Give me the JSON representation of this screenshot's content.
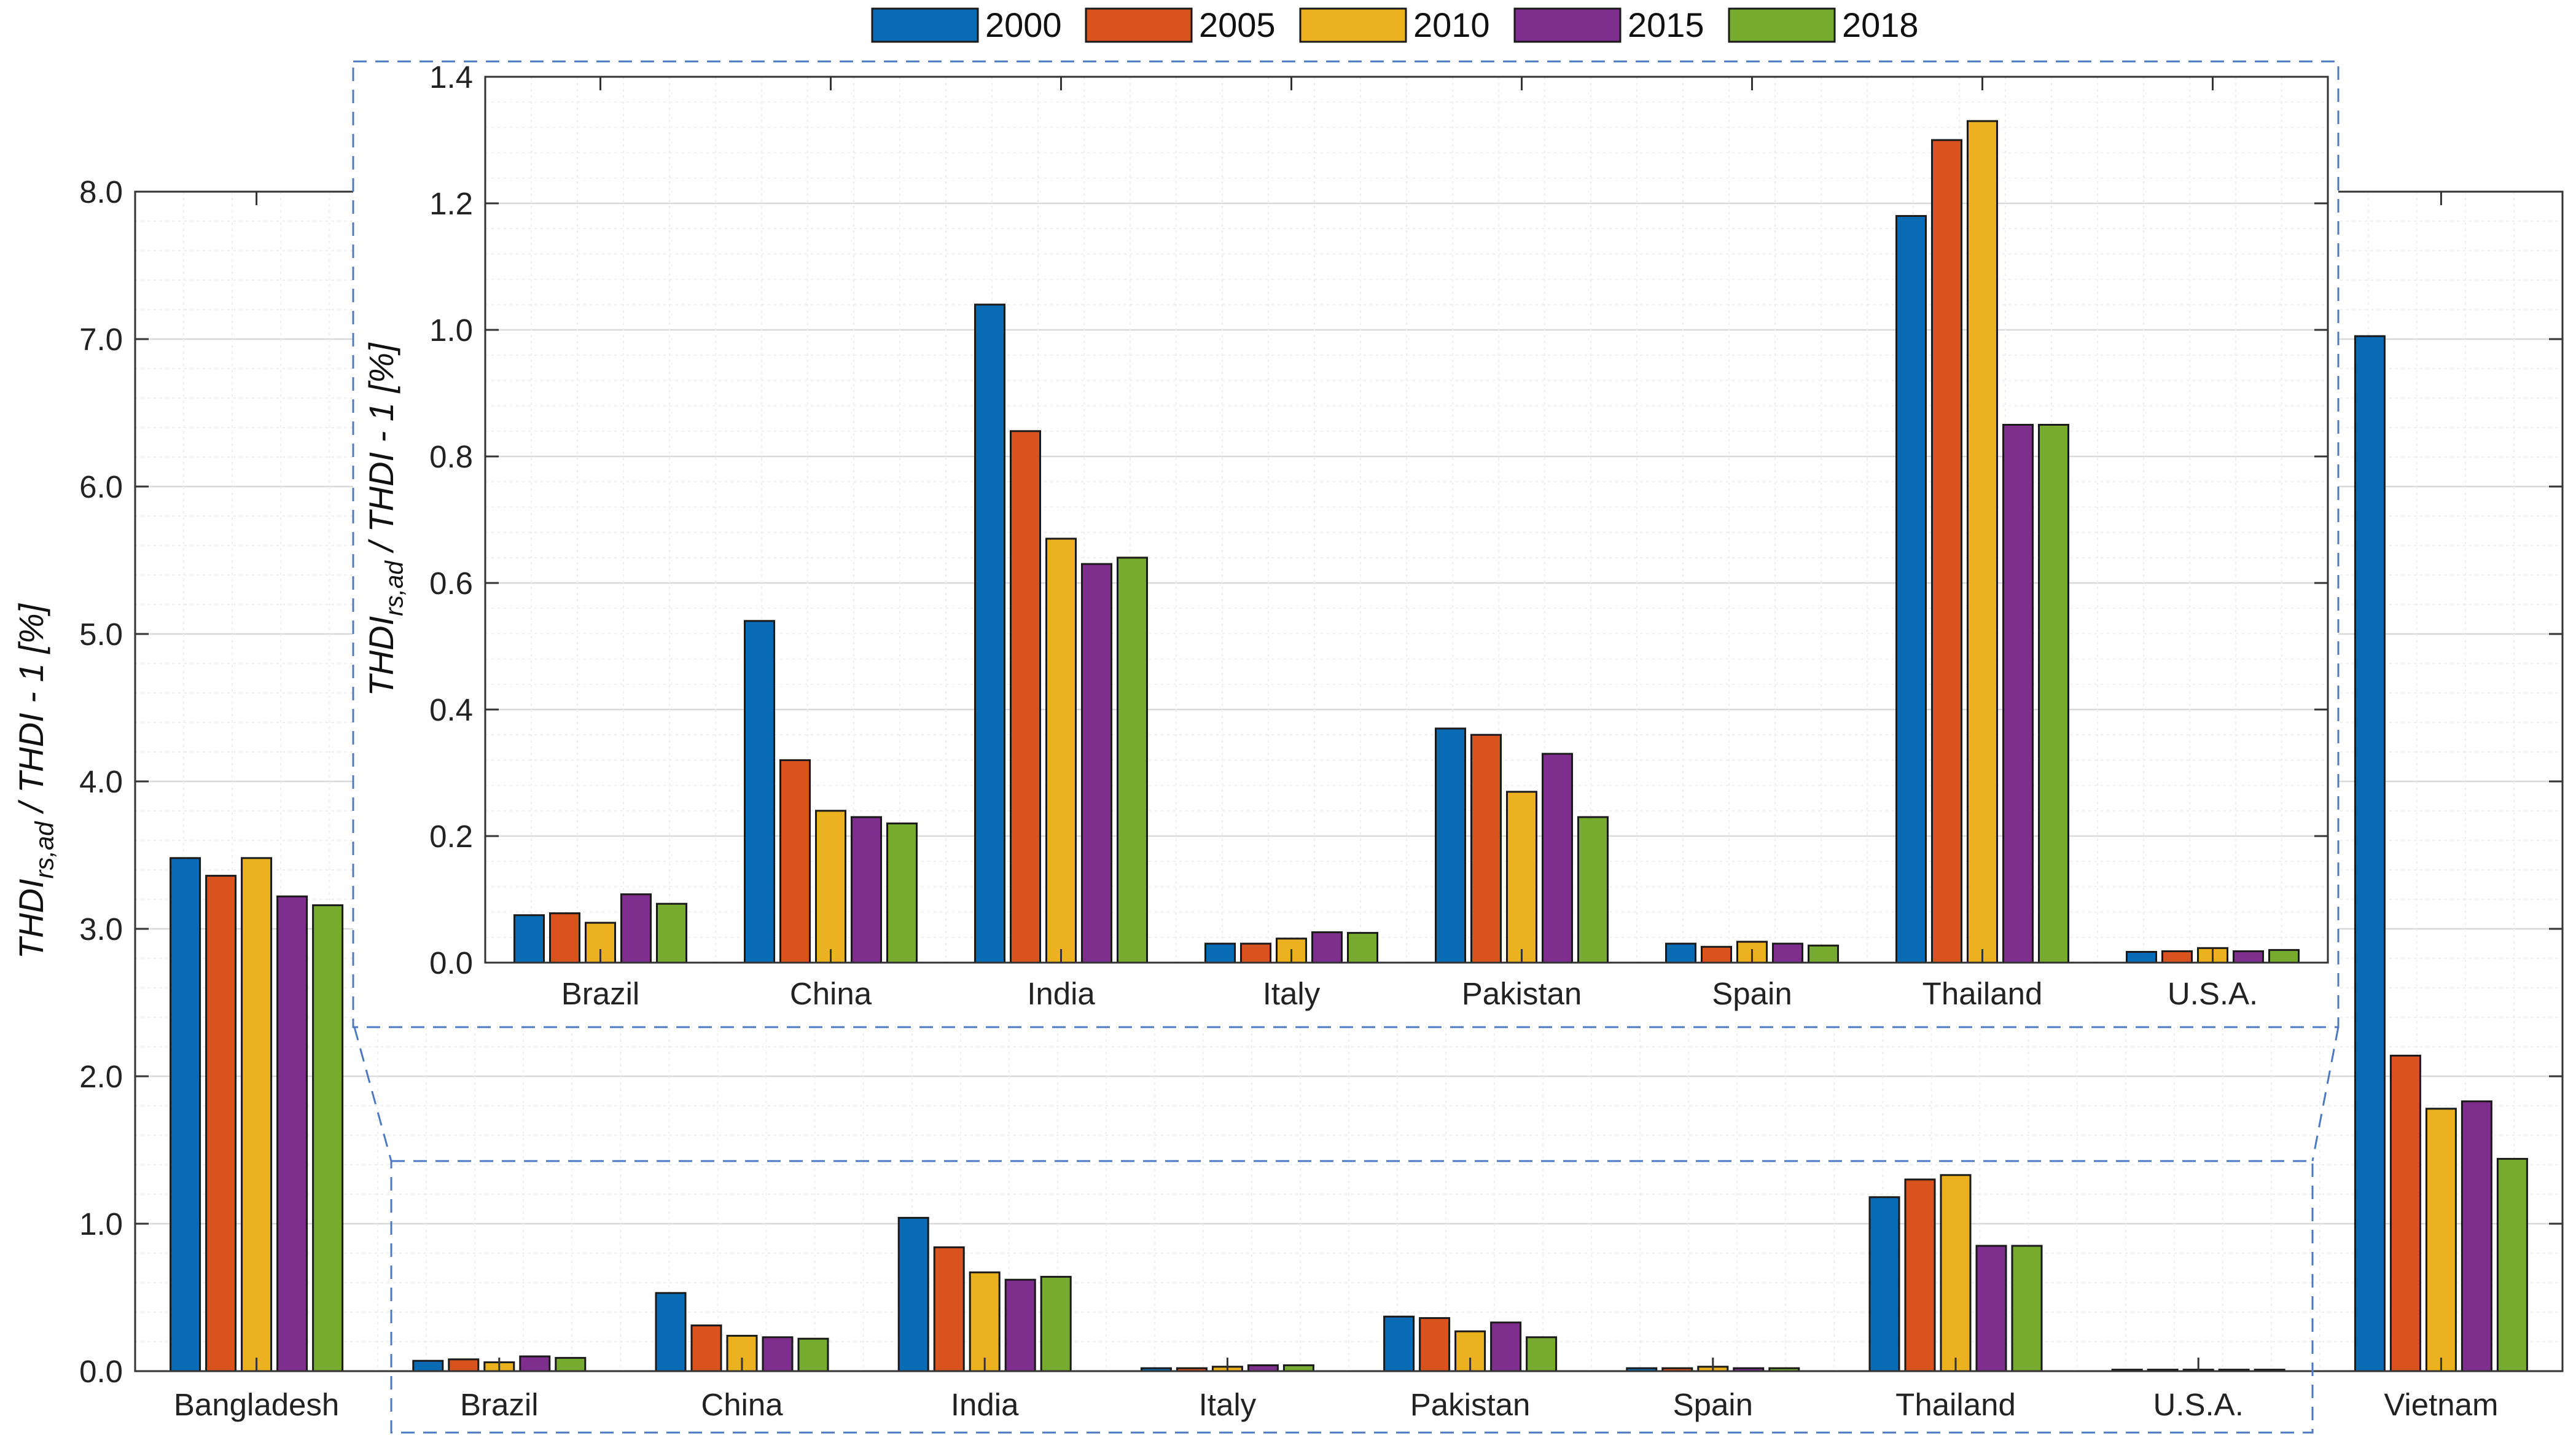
{
  "legend": {
    "entries": [
      {
        "label": "2000",
        "color": "#0a6bb5"
      },
      {
        "label": "2005",
        "color": "#d9531e"
      },
      {
        "label": "2010",
        "color": "#ecb11f"
      },
      {
        "label": "2015",
        "color": "#7e2f8e"
      },
      {
        "label": "2018",
        "color": "#76ab2f"
      }
    ]
  },
  "chart_data": [
    {
      "type": "bar",
      "categories": [
        "Bangladesh",
        "Brazil",
        "China",
        "India",
        "Italy",
        "Pakistan",
        "Spain",
        "Thailand",
        "U.S.A.",
        "Vietnam"
      ],
      "series": [
        {
          "name": "2000",
          "values": [
            3.48,
            0.07,
            0.53,
            1.04,
            0.02,
            0.37,
            0.02,
            1.18,
            0.01,
            7.02
          ]
        },
        {
          "name": "2005",
          "values": [
            3.36,
            0.08,
            0.31,
            0.84,
            0.02,
            0.36,
            0.02,
            1.3,
            0.01,
            2.14
          ]
        },
        {
          "name": "2010",
          "values": [
            3.48,
            0.06,
            0.24,
            0.67,
            0.03,
            0.27,
            0.03,
            1.33,
            0.01,
            1.78
          ]
        },
        {
          "name": "2015",
          "values": [
            3.22,
            0.1,
            0.23,
            0.62,
            0.04,
            0.33,
            0.02,
            0.85,
            0.01,
            1.83
          ]
        },
        {
          "name": "2018",
          "values": [
            3.16,
            0.09,
            0.22,
            0.64,
            0.04,
            0.23,
            0.02,
            0.85,
            0.01,
            1.44
          ]
        }
      ],
      "ylabel": "THDI_{rs,ad} / THDI - 1 [%]",
      "ylabel_main": "THDI",
      "ylabel_sub": "rs,ad",
      "ylabel_rest": " / THDI - 1 [%]",
      "ylim": [
        0,
        8
      ],
      "yticks": [
        "0.0",
        "1.0",
        "2.0",
        "3.0",
        "4.0",
        "5.0",
        "6.0",
        "7.0",
        "8.0"
      ],
      "grid": true,
      "legend_position": "top"
    },
    {
      "type": "bar",
      "categories": [
        "Brazil",
        "China",
        "India",
        "Italy",
        "Pakistan",
        "Spain",
        "Thailand",
        "U.S.A."
      ],
      "series": [
        {
          "name": "2000",
          "values": [
            0.075,
            0.54,
            1.04,
            0.03,
            0.37,
            0.03,
            1.18,
            0.017
          ]
        },
        {
          "name": "2005",
          "values": [
            0.078,
            0.32,
            0.84,
            0.03,
            0.36,
            0.025,
            1.3,
            0.018
          ]
        },
        {
          "name": "2010",
          "values": [
            0.063,
            0.24,
            0.67,
            0.038,
            0.27,
            0.033,
            1.33,
            0.023
          ]
        },
        {
          "name": "2015",
          "values": [
            0.108,
            0.23,
            0.63,
            0.048,
            0.33,
            0.03,
            0.85,
            0.018
          ]
        },
        {
          "name": "2018",
          "values": [
            0.093,
            0.22,
            0.64,
            0.047,
            0.23,
            0.027,
            0.85,
            0.02
          ]
        }
      ],
      "ylabel": "THDI_{rs,ad} / THDI - 1 [%]",
      "ylabel_main": "THDI",
      "ylabel_sub": "rs,ad",
      "ylabel_rest": " / THDI - 1 [%]",
      "ylim": [
        0,
        1.4
      ],
      "yticks": [
        "0.0",
        "0.2",
        "0.4",
        "0.6",
        "0.8",
        "1.0",
        "1.2",
        "1.4"
      ],
      "grid": true
    }
  ]
}
